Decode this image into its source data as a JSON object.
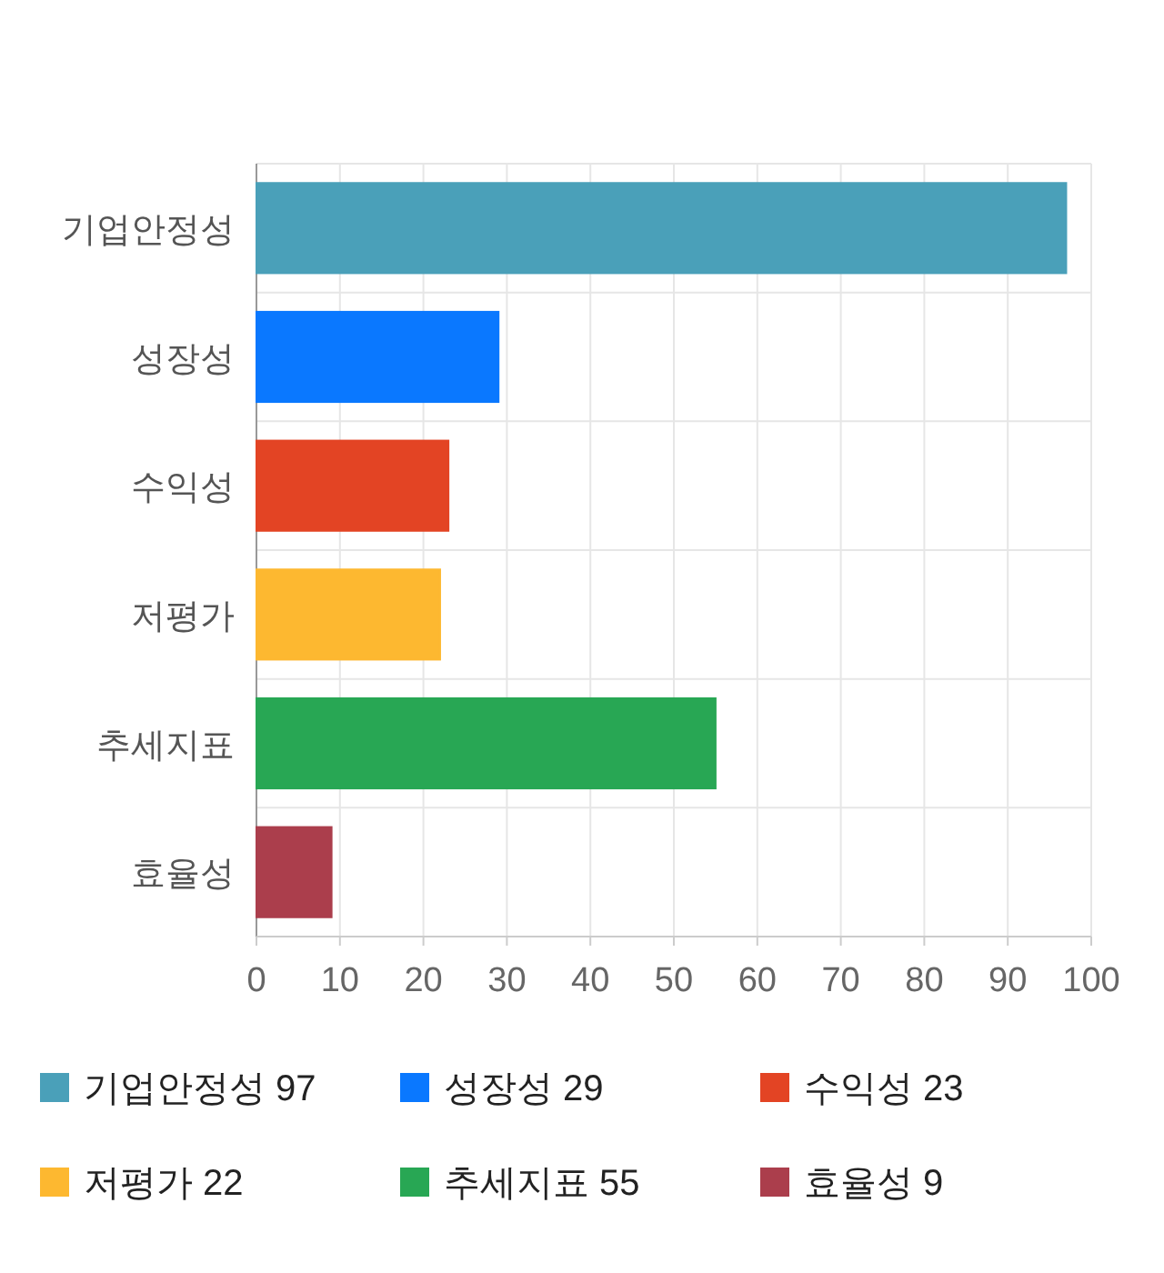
{
  "chart_data": {
    "type": "bar",
    "orientation": "horizontal",
    "stacked": true,
    "categories": [
      "기업안정성",
      "성장성",
      "수익성",
      "저평가",
      "추세지표",
      "효율성"
    ],
    "series": [
      {
        "name": "기업안정성 97",
        "color": "#4aa0b9",
        "values": [
          97,
          null,
          null,
          null,
          null,
          null
        ]
      },
      {
        "name": "성장성 29",
        "color": "#0a78ff",
        "values": [
          null,
          29,
          null,
          null,
          null,
          null
        ]
      },
      {
        "name": "수익성 23",
        "color": "#e34424",
        "values": [
          null,
          null,
          23,
          null,
          null,
          null
        ]
      },
      {
        "name": "저평가 22",
        "color": "#fdb830",
        "values": [
          null,
          null,
          null,
          22,
          null,
          null
        ]
      },
      {
        "name": "추세지표 55",
        "color": "#28a754",
        "values": [
          null,
          null,
          null,
          null,
          55,
          null
        ]
      },
      {
        "name": "효율성 9",
        "color": "#ab3e4c",
        "values": [
          null,
          null,
          null,
          null,
          null,
          9
        ]
      }
    ],
    "xlim": [
      0,
      100
    ],
    "xticks": [
      0,
      10,
      20,
      30,
      40,
      50,
      60,
      70,
      80,
      90,
      100
    ],
    "grid": true,
    "legend": "bottom"
  }
}
